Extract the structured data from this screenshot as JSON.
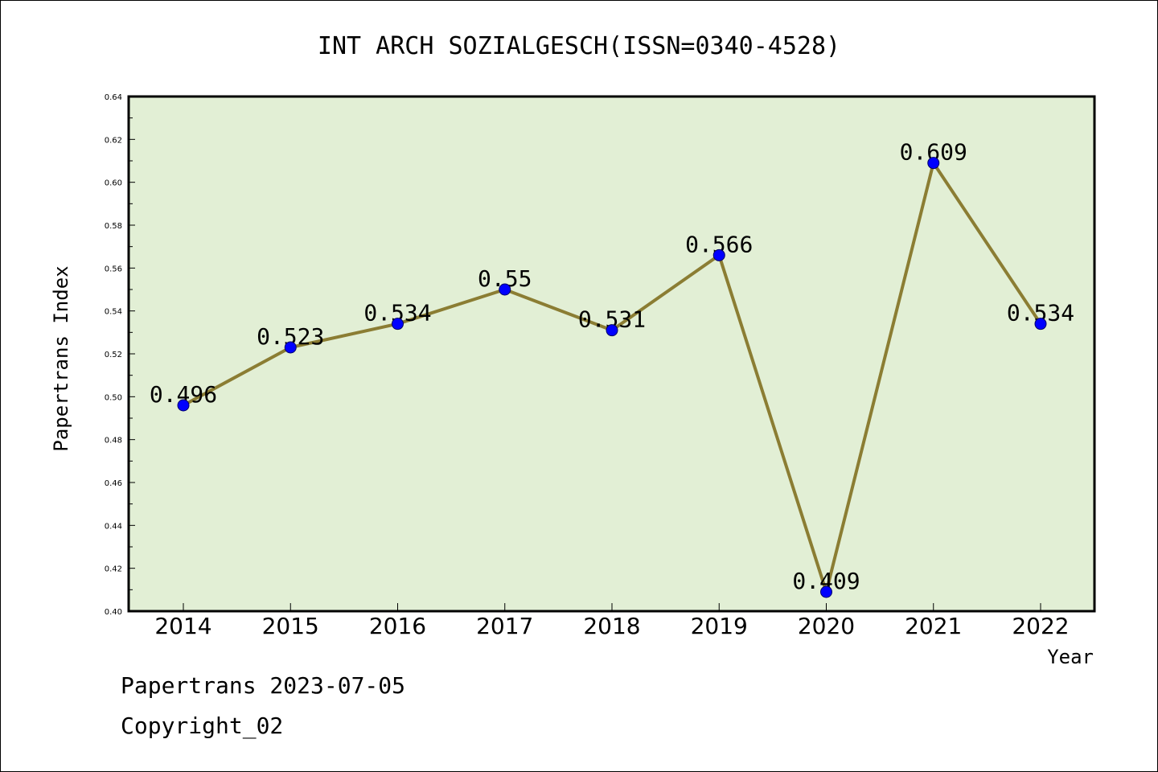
{
  "chart_data": {
    "type": "line",
    "title": "INT ARCH SOZIALGESCH(ISSN=0340-4528)",
    "xlabel": "Year",
    "ylabel": "Papertrans Index",
    "categories": [
      "2014",
      "2015",
      "2016",
      "2017",
      "2018",
      "2019",
      "2020",
      "2021",
      "2022"
    ],
    "series": [
      {
        "values": [
          0.496,
          0.523,
          0.534,
          0.55,
          0.531,
          0.566,
          0.409,
          0.609,
          0.534
        ],
        "labels": [
          "0.496",
          "0.523",
          "0.534",
          "0.55",
          "0.531",
          "0.566",
          "0.409",
          "0.609",
          "0.534"
        ]
      }
    ],
    "ylim": [
      0.4,
      0.64
    ],
    "yticks": [
      "0.40",
      "0.42",
      "0.44",
      "0.46",
      "0.48",
      "0.50",
      "0.52",
      "0.54",
      "0.56",
      "0.58",
      "0.60",
      "0.62",
      "0.64"
    ],
    "grid": false,
    "legend": "none",
    "colors": {
      "plot_background": "#e2efd5",
      "line": "#8b7d33",
      "marker": "#0000ff"
    }
  },
  "footer": {
    "line1": "Papertrans 2023-07-05",
    "line2": "Copyright_02"
  }
}
